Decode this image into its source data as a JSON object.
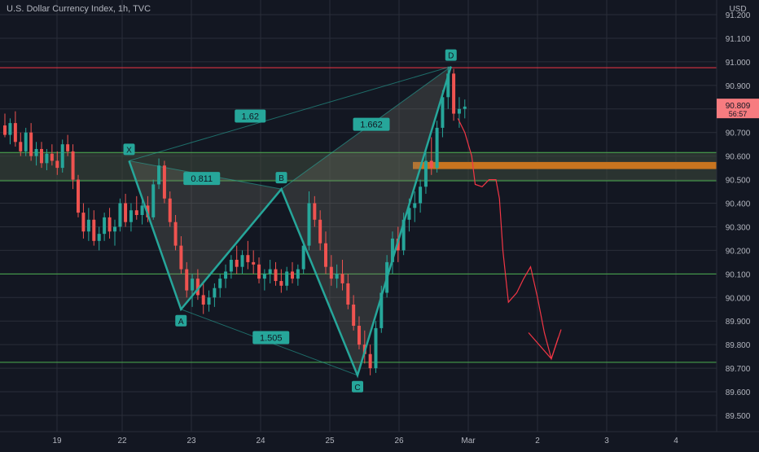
{
  "header": {
    "title": "U.S. Dollar Currency Index, 1h, TVC"
  },
  "colors": {
    "background": "#131722",
    "grid": "#2a2e39",
    "up": "#26a69a",
    "down": "#ef5350",
    "pattern": "#26a69a",
    "support": "#4caf50",
    "resistance": "#f23645",
    "zone_fill": "#3e4a3c",
    "orange": "#c8741f",
    "arrow": "#f23645",
    "text": "#b2b5be",
    "price_badge": "#f77c80"
  },
  "chart_data": {
    "type": "candlestick",
    "title": "U.S. Dollar Currency Index, 1h, TVC",
    "y_axis_label": "USD",
    "ylim": [
      89.45,
      91.25
    ],
    "y_ticks": [
      "91.200",
      "91.100",
      "91.000",
      "90.900",
      "90.800",
      "90.700",
      "90.600",
      "90.500",
      "90.400",
      "90.300",
      "90.200",
      "90.100",
      "90.000",
      "89.900",
      "89.800",
      "89.700",
      "89.600",
      "89.500"
    ],
    "x_ticks": [
      {
        "label": "19",
        "t": 0
      },
      {
        "label": "22",
        "t": 1
      },
      {
        "label": "23",
        "t": 2
      },
      {
        "label": "24",
        "t": 3
      },
      {
        "label": "25",
        "t": 4
      },
      {
        "label": "26",
        "t": 5
      },
      {
        "label": "Mar",
        "t": 6
      },
      {
        "label": "2",
        "t": 7
      },
      {
        "label": "3",
        "t": 8
      },
      {
        "label": "4",
        "t": 9
      }
    ],
    "current_price": {
      "value": "90.809",
      "timer": "56:57",
      "price": 90.809
    },
    "horizontal_levels": [
      {
        "price": 90.975,
        "role": "resistance"
      },
      {
        "price": 90.615,
        "role": "support"
      },
      {
        "price": 90.495,
        "role": "support"
      },
      {
        "price": 90.1,
        "role": "support"
      },
      {
        "price": 89.725,
        "role": "support"
      }
    ],
    "zone": {
      "top": 90.615,
      "bottom": 90.495
    },
    "orange_zone": {
      "top": 90.575,
      "bottom": 90.545,
      "t_start": 5.2
    },
    "pattern_points": [
      {
        "label": "X",
        "t": 1.1,
        "price": 90.58
      },
      {
        "label": "A",
        "t": 1.85,
        "price": 89.95
      },
      {
        "label": "B",
        "t": 3.3,
        "price": 90.46
      },
      {
        "label": "C",
        "t": 4.4,
        "price": 89.67
      },
      {
        "label": "D",
        "t": 5.75,
        "price": 90.98
      }
    ],
    "ratios": [
      {
        "label": "1.62",
        "t": 2.85,
        "price": 90.77
      },
      {
        "label": "1.662",
        "t": 4.6,
        "price": 90.735
      },
      {
        "label": "0.811",
        "t": 2.15,
        "price": 90.505
      },
      {
        "label": "1.505",
        "t": 3.15,
        "price": 89.83
      }
    ],
    "projection": [
      {
        "t": 5.85,
        "price": 90.76
      },
      {
        "t": 5.95,
        "price": 90.7
      },
      {
        "t": 6.05,
        "price": 90.6
      },
      {
        "t": 6.1,
        "price": 90.48
      },
      {
        "t": 6.2,
        "price": 90.47
      },
      {
        "t": 6.3,
        "price": 90.5
      },
      {
        "t": 6.4,
        "price": 90.5
      },
      {
        "t": 6.45,
        "price": 90.42
      },
      {
        "t": 6.5,
        "price": 90.2
      },
      {
        "t": 6.58,
        "price": 89.98
      },
      {
        "t": 6.7,
        "price": 90.02
      },
      {
        "t": 6.8,
        "price": 90.08
      },
      {
        "t": 6.9,
        "price": 90.13
      },
      {
        "t": 7.0,
        "price": 90.0
      },
      {
        "t": 7.1,
        "price": 89.85
      },
      {
        "t": 7.2,
        "price": 89.74
      },
      {
        "t": 7.3,
        "price": 89.83
      }
    ],
    "arrow_head": {
      "t": 7.2,
      "price": 89.74
    },
    "candles": [
      [
        90.73,
        90.78,
        90.68,
        90.69
      ],
      [
        90.69,
        90.76,
        90.65,
        90.74
      ],
      [
        90.74,
        90.79,
        90.64,
        90.66
      ],
      [
        90.66,
        90.7,
        90.6,
        90.62
      ],
      [
        90.62,
        90.72,
        90.6,
        90.7
      ],
      [
        90.7,
        90.74,
        90.58,
        90.6
      ],
      [
        90.6,
        90.66,
        90.56,
        90.63
      ],
      [
        90.63,
        90.66,
        90.55,
        90.57
      ],
      [
        90.57,
        90.63,
        90.54,
        90.61
      ],
      [
        90.61,
        90.65,
        90.56,
        90.58
      ],
      [
        90.58,
        90.62,
        90.52,
        90.55
      ],
      [
        90.55,
        90.67,
        90.53,
        90.65
      ],
      [
        90.65,
        90.69,
        90.6,
        90.62
      ],
      [
        90.62,
        90.65,
        90.46,
        90.5
      ],
      [
        90.5,
        90.52,
        90.34,
        90.36
      ],
      [
        90.36,
        90.4,
        90.25,
        90.28
      ],
      [
        90.28,
        90.38,
        90.24,
        90.33
      ],
      [
        90.33,
        90.37,
        90.22,
        90.24
      ],
      [
        90.24,
        90.3,
        90.2,
        90.27
      ],
      [
        90.27,
        90.36,
        90.24,
        90.34
      ],
      [
        90.34,
        90.38,
        90.25,
        90.28
      ],
      [
        90.28,
        90.33,
        90.22,
        90.3
      ],
      [
        90.3,
        90.42,
        90.28,
        90.4
      ],
      [
        90.4,
        90.44,
        90.3,
        90.32
      ],
      [
        90.32,
        90.4,
        90.28,
        90.37
      ],
      [
        90.37,
        90.43,
        90.33,
        90.35
      ],
      [
        90.35,
        90.42,
        90.31,
        90.39
      ],
      [
        90.39,
        90.43,
        90.32,
        90.34
      ],
      [
        90.34,
        90.5,
        90.33,
        90.48
      ],
      [
        90.48,
        90.59,
        90.46,
        90.56
      ],
      [
        90.56,
        90.58,
        90.4,
        90.42
      ],
      [
        90.42,
        90.45,
        90.3,
        90.32
      ],
      [
        90.32,
        90.35,
        90.2,
        90.22
      ],
      [
        90.22,
        90.26,
        90.1,
        90.12
      ],
      [
        90.12,
        90.15,
        90.0,
        90.03
      ],
      [
        90.03,
        90.1,
        89.96,
        90.08
      ],
      [
        90.08,
        90.12,
        89.99,
        90.01
      ],
      [
        90.01,
        90.06,
        89.93,
        89.97
      ],
      [
        89.97,
        90.03,
        89.94,
        90.0
      ],
      [
        90.0,
        90.06,
        89.96,
        90.04
      ],
      [
        90.04,
        90.1,
        90.0,
        90.08
      ],
      [
        90.08,
        90.14,
        90.04,
        90.11
      ],
      [
        90.11,
        90.18,
        90.08,
        90.16
      ],
      [
        90.16,
        90.22,
        90.1,
        90.13
      ],
      [
        90.13,
        90.2,
        90.1,
        90.18
      ],
      [
        90.18,
        90.24,
        90.12,
        90.15
      ],
      [
        90.15,
        90.2,
        90.1,
        90.14
      ],
      [
        90.14,
        90.17,
        90.06,
        90.08
      ],
      [
        90.08,
        90.12,
        90.03,
        90.1
      ],
      [
        90.1,
        90.16,
        90.06,
        90.12
      ],
      [
        90.12,
        90.15,
        90.05,
        90.07
      ],
      [
        90.07,
        90.12,
        90.02,
        90.05
      ],
      [
        90.05,
        90.13,
        90.03,
        90.11
      ],
      [
        90.11,
        90.15,
        90.06,
        90.08
      ],
      [
        90.08,
        90.14,
        90.05,
        90.12
      ],
      [
        90.12,
        90.24,
        90.1,
        90.22
      ],
      [
        90.22,
        90.45,
        90.2,
        90.4
      ],
      [
        90.4,
        90.43,
        90.3,
        90.33
      ],
      [
        90.33,
        90.37,
        90.2,
        90.23
      ],
      [
        90.23,
        90.28,
        90.1,
        90.13
      ],
      [
        90.13,
        90.18,
        90.05,
        90.08
      ],
      [
        90.08,
        90.14,
        90.04,
        90.1
      ],
      [
        90.1,
        90.16,
        90.03,
        90.06
      ],
      [
        90.06,
        90.1,
        89.95,
        89.97
      ],
      [
        89.97,
        90.01,
        89.86,
        89.88
      ],
      [
        89.88,
        89.92,
        89.78,
        89.8
      ],
      [
        89.8,
        89.86,
        89.72,
        89.76
      ],
      [
        89.76,
        89.8,
        89.67,
        89.7
      ],
      [
        89.7,
        89.9,
        89.68,
        89.87
      ],
      [
        89.87,
        90.05,
        89.85,
        90.02
      ],
      [
        90.02,
        90.18,
        90.0,
        90.15
      ],
      [
        90.15,
        90.28,
        90.1,
        90.25
      ],
      [
        90.25,
        90.3,
        90.15,
        90.2
      ],
      [
        90.2,
        90.36,
        90.18,
        90.33
      ],
      [
        90.33,
        90.42,
        90.28,
        90.38
      ],
      [
        90.38,
        90.45,
        90.32,
        90.4
      ],
      [
        90.4,
        90.5,
        90.36,
        90.47
      ],
      [
        90.47,
        90.62,
        90.44,
        90.58
      ],
      [
        90.58,
        90.68,
        90.52,
        90.55
      ],
      [
        90.55,
        90.75,
        90.53,
        90.72
      ],
      [
        90.72,
        90.88,
        90.68,
        90.85
      ],
      [
        90.85,
        90.98,
        90.8,
        90.95
      ],
      [
        90.95,
        90.97,
        90.75,
        90.78
      ],
      [
        90.78,
        90.85,
        90.72,
        90.8
      ],
      [
        90.8,
        90.84,
        90.76,
        90.81
      ]
    ]
  }
}
